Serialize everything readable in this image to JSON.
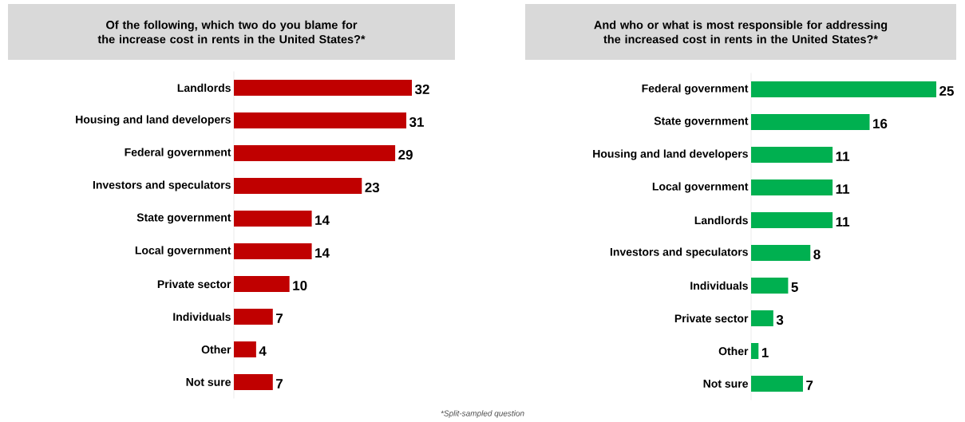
{
  "chart_data": [
    {
      "type": "bar",
      "orientation": "horizontal",
      "title": "Of the following, which two do you blame for the increase cost in rents in the United States?*",
      "categories": [
        "Landlords",
        "Housing and land developers",
        "Federal government",
        "Investors and speculators",
        "State government",
        "Local government",
        "Private sector",
        "Individuals",
        "Other",
        "Not sure"
      ],
      "values": [
        32,
        31,
        29,
        23,
        14,
        14,
        10,
        7,
        4,
        7
      ],
      "color": "#c00000",
      "data_labels": true
    },
    {
      "type": "bar",
      "orientation": "horizontal",
      "title": "And who or what is most responsible for addressing the increased cost in rents in the United States?*",
      "categories": [
        "Federal government",
        "State government",
        "Housing and land developers",
        "Local government",
        "Landlords",
        "Investors and speculators",
        "Individuals",
        "Private sector",
        "Other",
        "Not sure"
      ],
      "values": [
        25,
        16,
        11,
        11,
        11,
        8,
        5,
        3,
        1,
        7
      ],
      "color": "#00b050",
      "data_labels": true,
      "annotations": [
        "*Split-sampled question"
      ]
    }
  ]
}
